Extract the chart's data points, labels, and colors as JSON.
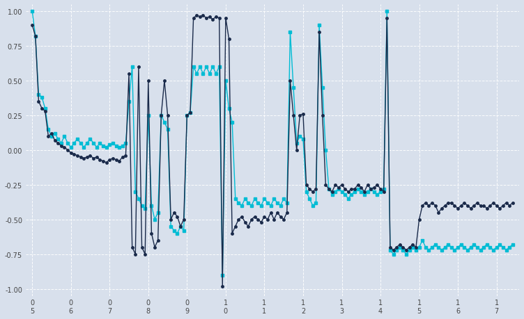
{
  "bg_color": "#d8e0ec",
  "line1_color": "#00bcd4",
  "line2_color": "#1a2a4a",
  "grid_color": "#ffffff",
  "ylim": [
    -1.05,
    1.05
  ],
  "yticks": [
    -1.0,
    -0.75,
    -0.5,
    -0.25,
    0.0,
    0.25,
    0.5,
    0.75,
    1.0
  ],
  "n_points": 150,
  "submissions_data": [
    0.9,
    0.82,
    0.35,
    0.3,
    0.28,
    0.1,
    0.12,
    0.07,
    0.05,
    0.03,
    0.02,
    0.0,
    -0.02,
    -0.03,
    -0.04,
    -0.05,
    -0.06,
    -0.05,
    -0.04,
    -0.06,
    -0.05,
    -0.07,
    -0.08,
    -0.09,
    -0.07,
    -0.06,
    -0.07,
    -0.08,
    -0.05,
    -0.04,
    0.55,
    -0.7,
    -0.75,
    0.6,
    -0.7,
    -0.75,
    0.5,
    -0.6,
    -0.7,
    -0.65,
    0.25,
    0.5,
    0.25,
    -0.5,
    -0.45,
    -0.48,
    -0.55,
    -0.5,
    0.25,
    0.27,
    0.95,
    0.97,
    0.96,
    0.97,
    0.95,
    0.96,
    0.94,
    0.96,
    0.95,
    -0.98,
    0.95,
    0.8,
    -0.6,
    -0.55,
    -0.5,
    -0.48,
    -0.52,
    -0.55,
    -0.5,
    -0.48,
    -0.5,
    -0.52,
    -0.48,
    -0.5,
    -0.45,
    -0.5,
    -0.45,
    -0.48,
    -0.5,
    -0.45,
    0.5,
    0.25,
    0.0,
    0.25,
    0.26,
    -0.25,
    -0.28,
    -0.3,
    -0.28,
    0.85,
    0.25,
    -0.25,
    -0.28,
    -0.3,
    -0.25,
    -0.27,
    -0.25,
    -0.28,
    -0.3,
    -0.28,
    -0.28,
    -0.25,
    -0.27,
    -0.3,
    -0.25,
    -0.28,
    -0.27,
    -0.25,
    -0.28,
    -0.3,
    0.95,
    -0.7,
    -0.72,
    -0.7,
    -0.68,
    -0.7,
    -0.72,
    -0.7,
    -0.68,
    -0.7,
    -0.5,
    -0.4,
    -0.38,
    -0.4,
    -0.38,
    -0.4,
    -0.45,
    -0.42,
    -0.4,
    -0.38,
    -0.38,
    -0.4,
    -0.42,
    -0.4,
    -0.38,
    -0.4,
    -0.42,
    -0.4,
    -0.38,
    -0.4,
    -0.4,
    -0.42,
    -0.4,
    -0.38,
    -0.4,
    -0.42,
    -0.4,
    -0.38,
    -0.4,
    -0.38
  ],
  "comments_data": [
    1.0,
    0.82,
    0.4,
    0.38,
    0.3,
    0.15,
    0.1,
    0.12,
    0.08,
    0.05,
    0.1,
    0.05,
    0.02,
    0.05,
    0.08,
    0.05,
    0.02,
    0.05,
    0.08,
    0.05,
    0.02,
    0.05,
    0.03,
    0.02,
    0.04,
    0.05,
    0.03,
    0.02,
    0.03,
    0.05,
    0.35,
    0.6,
    -0.3,
    -0.35,
    -0.4,
    -0.42,
    0.25,
    -0.4,
    -0.5,
    -0.45,
    0.25,
    0.2,
    0.15,
    -0.55,
    -0.58,
    -0.6,
    -0.55,
    -0.58,
    0.25,
    0.27,
    0.6,
    0.55,
    0.6,
    0.55,
    0.6,
    0.55,
    0.6,
    0.55,
    0.6,
    -0.9,
    0.5,
    0.3,
    0.2,
    -0.35,
    -0.38,
    -0.4,
    -0.35,
    -0.38,
    -0.4,
    -0.35,
    -0.38,
    -0.4,
    -0.35,
    -0.38,
    -0.4,
    -0.35,
    -0.38,
    -0.4,
    -0.35,
    -0.38,
    0.85,
    0.45,
    0.05,
    0.1,
    0.08,
    -0.3,
    -0.35,
    -0.4,
    -0.38,
    0.9,
    0.45,
    0.0,
    -0.28,
    -0.32,
    -0.3,
    -0.28,
    -0.3,
    -0.32,
    -0.35,
    -0.32,
    -0.3,
    -0.28,
    -0.3,
    -0.32,
    -0.3,
    -0.28,
    -0.3,
    -0.32,
    -0.3,
    -0.28,
    1.0,
    -0.72,
    -0.75,
    -0.72,
    -0.7,
    -0.72,
    -0.75,
    -0.72,
    -0.7,
    -0.72,
    -0.7,
    -0.65,
    -0.7,
    -0.72,
    -0.7,
    -0.68,
    -0.7,
    -0.72,
    -0.7,
    -0.68,
    -0.7,
    -0.72,
    -0.7,
    -0.68,
    -0.7,
    -0.72,
    -0.7,
    -0.68,
    -0.7,
    -0.72,
    -0.7,
    -0.68,
    -0.7,
    -0.72,
    -0.7,
    -0.68,
    -0.7,
    -0.72,
    -0.7,
    -0.68
  ]
}
